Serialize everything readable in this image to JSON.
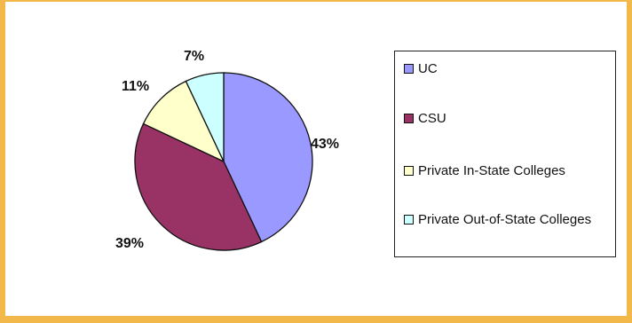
{
  "page_title": "",
  "chart_data": {
    "type": "pie",
    "title": "",
    "categories": [
      "UC",
      "CSU",
      "Private In-State Colleges",
      "Private Out-of-State Colleges"
    ],
    "values": [
      43,
      39,
      11,
      7
    ],
    "value_labels": [
      "43%",
      "39%",
      "11%",
      "7%"
    ],
    "colors": [
      "#9999ff",
      "#993366",
      "#ffffcc",
      "#ccffff"
    ],
    "start_angle_deg": 0,
    "direction": "clockwise",
    "legend_position": "right"
  }
}
